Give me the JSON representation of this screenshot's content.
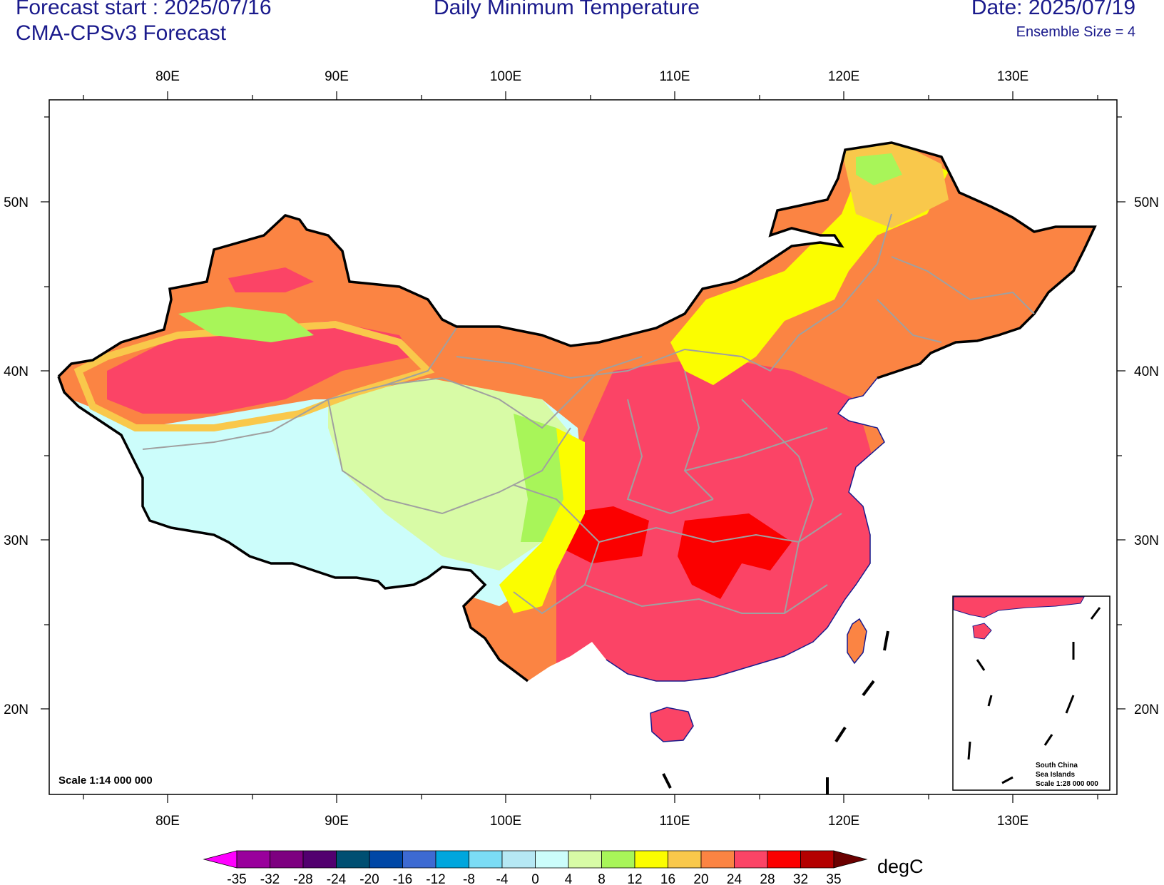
{
  "header": {
    "forecast_start": "Forecast start : 2025/07/16",
    "model": "CMA-CPSv3 Forecast",
    "title": "Daily Minimum Temperature",
    "date": "Date: 2025/07/19",
    "ensemble": "Ensemble Size = 4"
  },
  "axes": {
    "lon_labels": [
      "80E",
      "90E",
      "100E",
      "110E",
      "120E",
      "130E"
    ],
    "lat_labels": [
      "50N",
      "40N",
      "30N",
      "20N"
    ]
  },
  "map": {
    "scale": "Scale 1:14 000 000",
    "inset": {
      "line1": "South China",
      "line2": "Sea Islands",
      "line3": "Scale 1:28 000 000"
    }
  },
  "colorbar": {
    "unit": "degC",
    "labels": [
      "-35",
      "-32",
      "-28",
      "-24",
      "-20",
      "-16",
      "-12",
      "-8",
      "-4",
      "0",
      "4",
      "8",
      "12",
      "16",
      "20",
      "24",
      "28",
      "32",
      "35"
    ],
    "colors": [
      "#ff00ff",
      "#99009c",
      "#7d0080",
      "#52006f",
      "#004f72",
      "#0047a6",
      "#3d6ad2",
      "#00a6dd",
      "#7bdcf5",
      "#b6e8f4",
      "#ccfdfb",
      "#d8fba6",
      "#a8f559",
      "#fbfd00",
      "#f9c84b",
      "#fb8443",
      "#fb4466",
      "#fb0000",
      "#b40000",
      "#6b0000"
    ]
  },
  "legend_regions": [
    {
      "name": "tibet",
      "color": "#ccfdfb"
    },
    {
      "name": "southeast",
      "color": "#fb4466"
    },
    {
      "name": "tarim",
      "color": "#fb4466"
    },
    {
      "name": "northeast",
      "color": "#fb8443"
    }
  ]
}
